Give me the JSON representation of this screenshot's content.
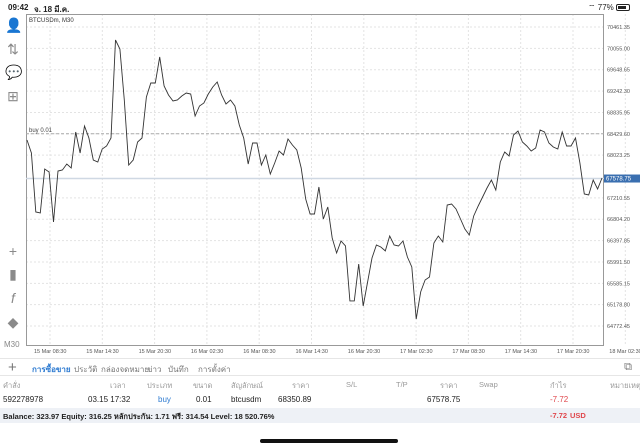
{
  "status_bar": {
    "time": "09:42",
    "date": "จ. 18 มี.ค.",
    "battery": "77%",
    "battery_level": 0.77
  },
  "chart": {
    "symbol_label": "BTCUSDm, M30",
    "timeframe": "M30",
    "order_line_label": "buy 0.01"
  },
  "chart_data": {
    "type": "line",
    "title": "BTCUSDm, M30",
    "y_ticks": [
      "70461.35",
      "70055.00",
      "69648.65",
      "69242.30",
      "68835.95",
      "68429.60",
      "68023.25",
      "67210.55",
      "66804.20",
      "66397.85",
      "65991.50",
      "65585.15",
      "65178.80",
      "64772.45"
    ],
    "x_ticks": [
      "15 Mar 08:30",
      "15 Mar 14:30",
      "15 Mar 20:30",
      "16 Mar 02:30",
      "16 Mar 08:30",
      "16 Mar 14:30",
      "16 Mar 20:30",
      "17 Mar 02:30",
      "17 Mar 08:30",
      "17 Mar 14:30",
      "17 Mar 20:30",
      "18 Mar 02:30"
    ],
    "ylim": [
      64600,
      70560
    ],
    "current_price": 67578.75,
    "current_price_label": "67578.75",
    "order_price": 68429.6,
    "grid": true,
    "line_color": "#333333",
    "current_price_color": "#3a6fb0",
    "values": [
      68312,
      68064,
      66942,
      66923,
      67760,
      67703,
      66752,
      67722,
      67741,
      67855,
      67779,
      68464,
      68064,
      68578,
      68350,
      67931,
      67893,
      68141,
      68198,
      68350,
      70214,
      70043,
      69073,
      67836,
      67931,
      68274,
      68350,
      69130,
      69396,
      69396,
      69890,
      69339,
      69168,
      69054,
      69073,
      69149,
      69206,
      69187,
      68768,
      68958,
      69015,
      69187,
      69320,
      69415,
      69168,
      68996,
      69073,
      68958,
      68597,
      68350,
      67855,
      68255,
      68255,
      67836,
      68026,
      67665,
      67874,
      68103,
      68026,
      68331,
      68217,
      68122,
      67779,
      67190,
      66904,
      66904,
      67418,
      66809,
      67037,
      66448,
      66162,
      66391,
      66296,
      65250,
      65250,
      65953,
      65154,
      65611,
      66067,
      66315,
      66277,
      66201,
      66486,
      66315,
      66296,
      66391,
      66086,
      65896,
      64907,
      65421,
      65649,
      65706,
      66353,
      66486,
      66372,
      67075,
      67094,
      66999,
      66809,
      66619,
      66505,
      66866,
      67056,
      67228,
      67399,
      67551,
      67361,
      67893,
      68083,
      68007,
      68407,
      68483,
      68274,
      68198,
      68103,
      68160,
      68502,
      68464,
      68255,
      68179,
      68141,
      68464,
      68198,
      68198,
      68350,
      67874,
      67285,
      67266,
      67551,
      67380,
      67589
    ]
  },
  "left_toolbar": {
    "icons": [
      "account-icon",
      "trade-arrows-icon",
      "chat-icon",
      "new-document-icon",
      "crosshair-icon",
      "chart-type-icon",
      "indicator-icon",
      "objects-icon"
    ],
    "timeframe": "M30"
  },
  "tabs": [
    "การซื้อขาย",
    "ประวัติ",
    "กล่องจดหมาย",
    "ข่าว",
    "บันทึก",
    "การตั้งค่า"
  ],
  "table": {
    "headers": [
      "คำสั่ง",
      "เวลา",
      "ประเภท",
      "ขนาด",
      "สัญลักษณ์",
      "ราคา",
      "S/L",
      "T/P",
      "ราคา",
      "Swap",
      "กำไร",
      "หมายเหตุ"
    ],
    "rows": [
      {
        "order": "592278978",
        "time": "03.15 17:32",
        "type": "buy",
        "size": "0.01",
        "symbol": "btcusdm",
        "open_price": "68350.89",
        "sl": "",
        "tp": "",
        "price": "67578.75",
        "swap": "",
        "profit": "-7.72",
        "comment": ""
      }
    ],
    "balance_text": "Balance: 323.97 Equity: 316.25 หลักประกัน: 1.71 ฟรี: 314.54 Level: 18 520.76%",
    "total_profit": "-7.72",
    "currency": "USD"
  }
}
